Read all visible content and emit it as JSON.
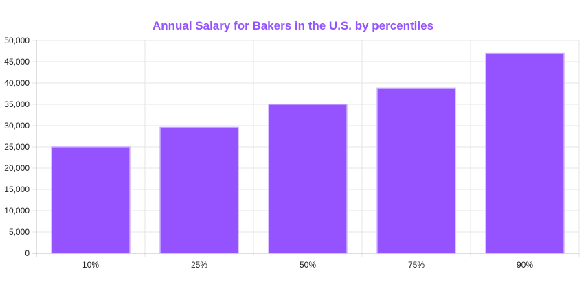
{
  "chart_data": {
    "type": "bar",
    "title": "Annual Salary for Bakers in the U.S. by percentiles",
    "categories": [
      "10%",
      "25%",
      "50%",
      "75%",
      "90%"
    ],
    "values": [
      25000,
      29600,
      35000,
      38800,
      47000
    ],
    "xlabel": "",
    "ylabel": "",
    "ylim": [
      0,
      50000
    ],
    "yticks": [
      "0",
      "5,000",
      "10,000",
      "15,000",
      "20,000",
      "25,000",
      "30,000",
      "35,000",
      "40,000",
      "45,000",
      "50,000"
    ],
    "grid": true,
    "legend": "none",
    "colors": {
      "bar": "#9552ff",
      "bar_border": "#c7a6ff",
      "title": "#9552ff",
      "grid": "#e4e4e4",
      "axis": "#bdbdbd"
    }
  }
}
